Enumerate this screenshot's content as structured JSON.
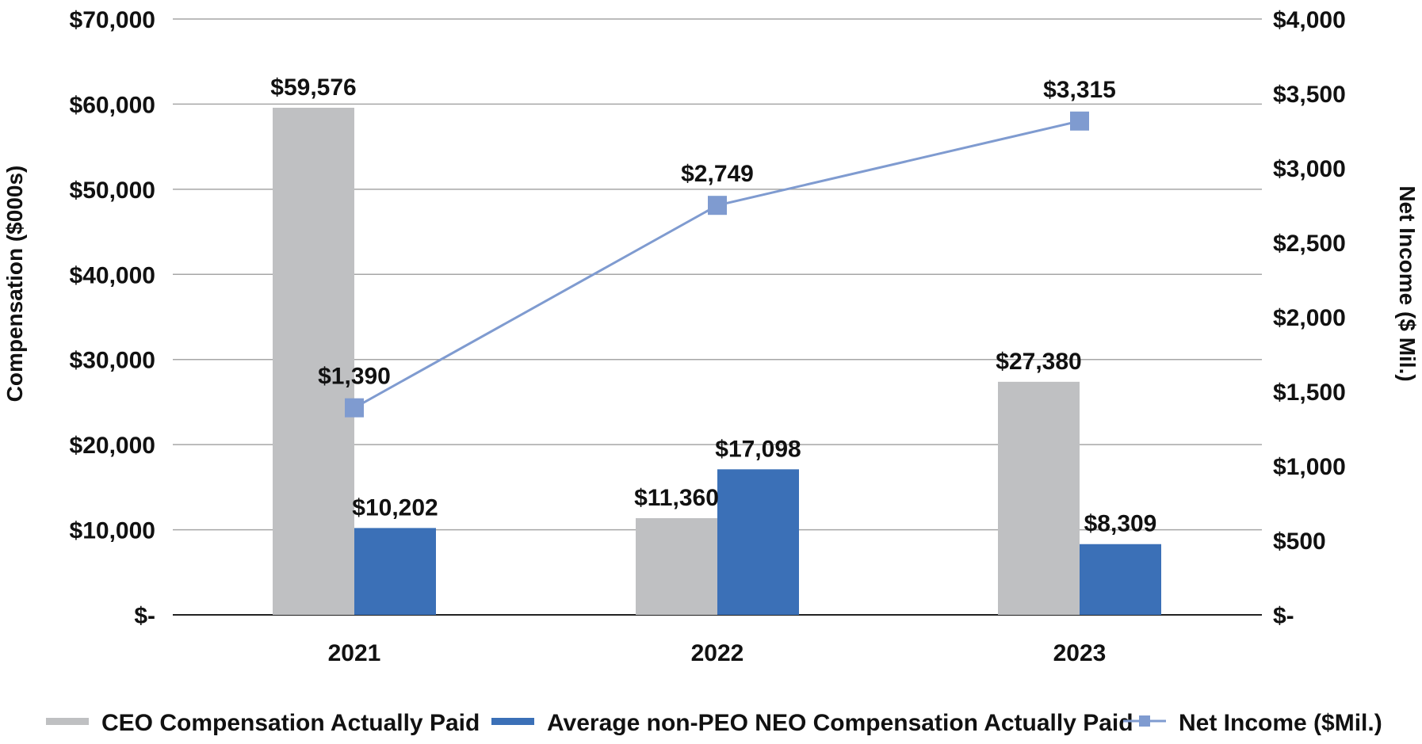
{
  "chart_data": {
    "type": "bar",
    "categories": [
      "2021",
      "2022",
      "2023"
    ],
    "series": [
      {
        "name": "CEO Compensation Actually Paid",
        "kind": "bar",
        "axis": "left",
        "color": "#bfc0c2",
        "values": [
          59576,
          11360,
          27380
        ],
        "labels": [
          "$59,576",
          "$11,360",
          "$27,380"
        ]
      },
      {
        "name": "Average non-PEO NEO Compensation Actually Paid",
        "kind": "bar",
        "axis": "left",
        "color": "#3b70b7",
        "values": [
          10202,
          17098,
          8309
        ],
        "labels": [
          "$10,202",
          "$17,098",
          "$8,309"
        ]
      },
      {
        "name": "Net Income ($Mil.)",
        "kind": "line",
        "axis": "right",
        "color": "#7f9bd0",
        "values": [
          1390,
          2749,
          3315
        ],
        "labels": [
          "$1,390",
          "$2,749",
          "$3,315"
        ]
      }
    ],
    "y_left": {
      "label": "Compensation ($000s)",
      "range": [
        0,
        70000
      ],
      "tick_values": [
        0,
        10000,
        20000,
        30000,
        40000,
        50000,
        60000,
        70000
      ],
      "tick_labels": [
        "$-",
        "$10,000",
        "$20,000",
        "$30,000",
        "$40,000",
        "$50,000",
        "$60,000",
        "$70,000"
      ]
    },
    "y_right": {
      "label": "Net Income ($ Mil.)",
      "range": [
        0,
        4000
      ],
      "tick_values": [
        0,
        500,
        1000,
        1500,
        2000,
        2500,
        3000,
        3500,
        4000
      ],
      "tick_labels": [
        "$-",
        "$500",
        "$1,000",
        "$1,500",
        "$2,000",
        "$2,500",
        "$3,000",
        "$3,500",
        "$4,000"
      ]
    },
    "grid": true,
    "legend_position": "bottom"
  }
}
